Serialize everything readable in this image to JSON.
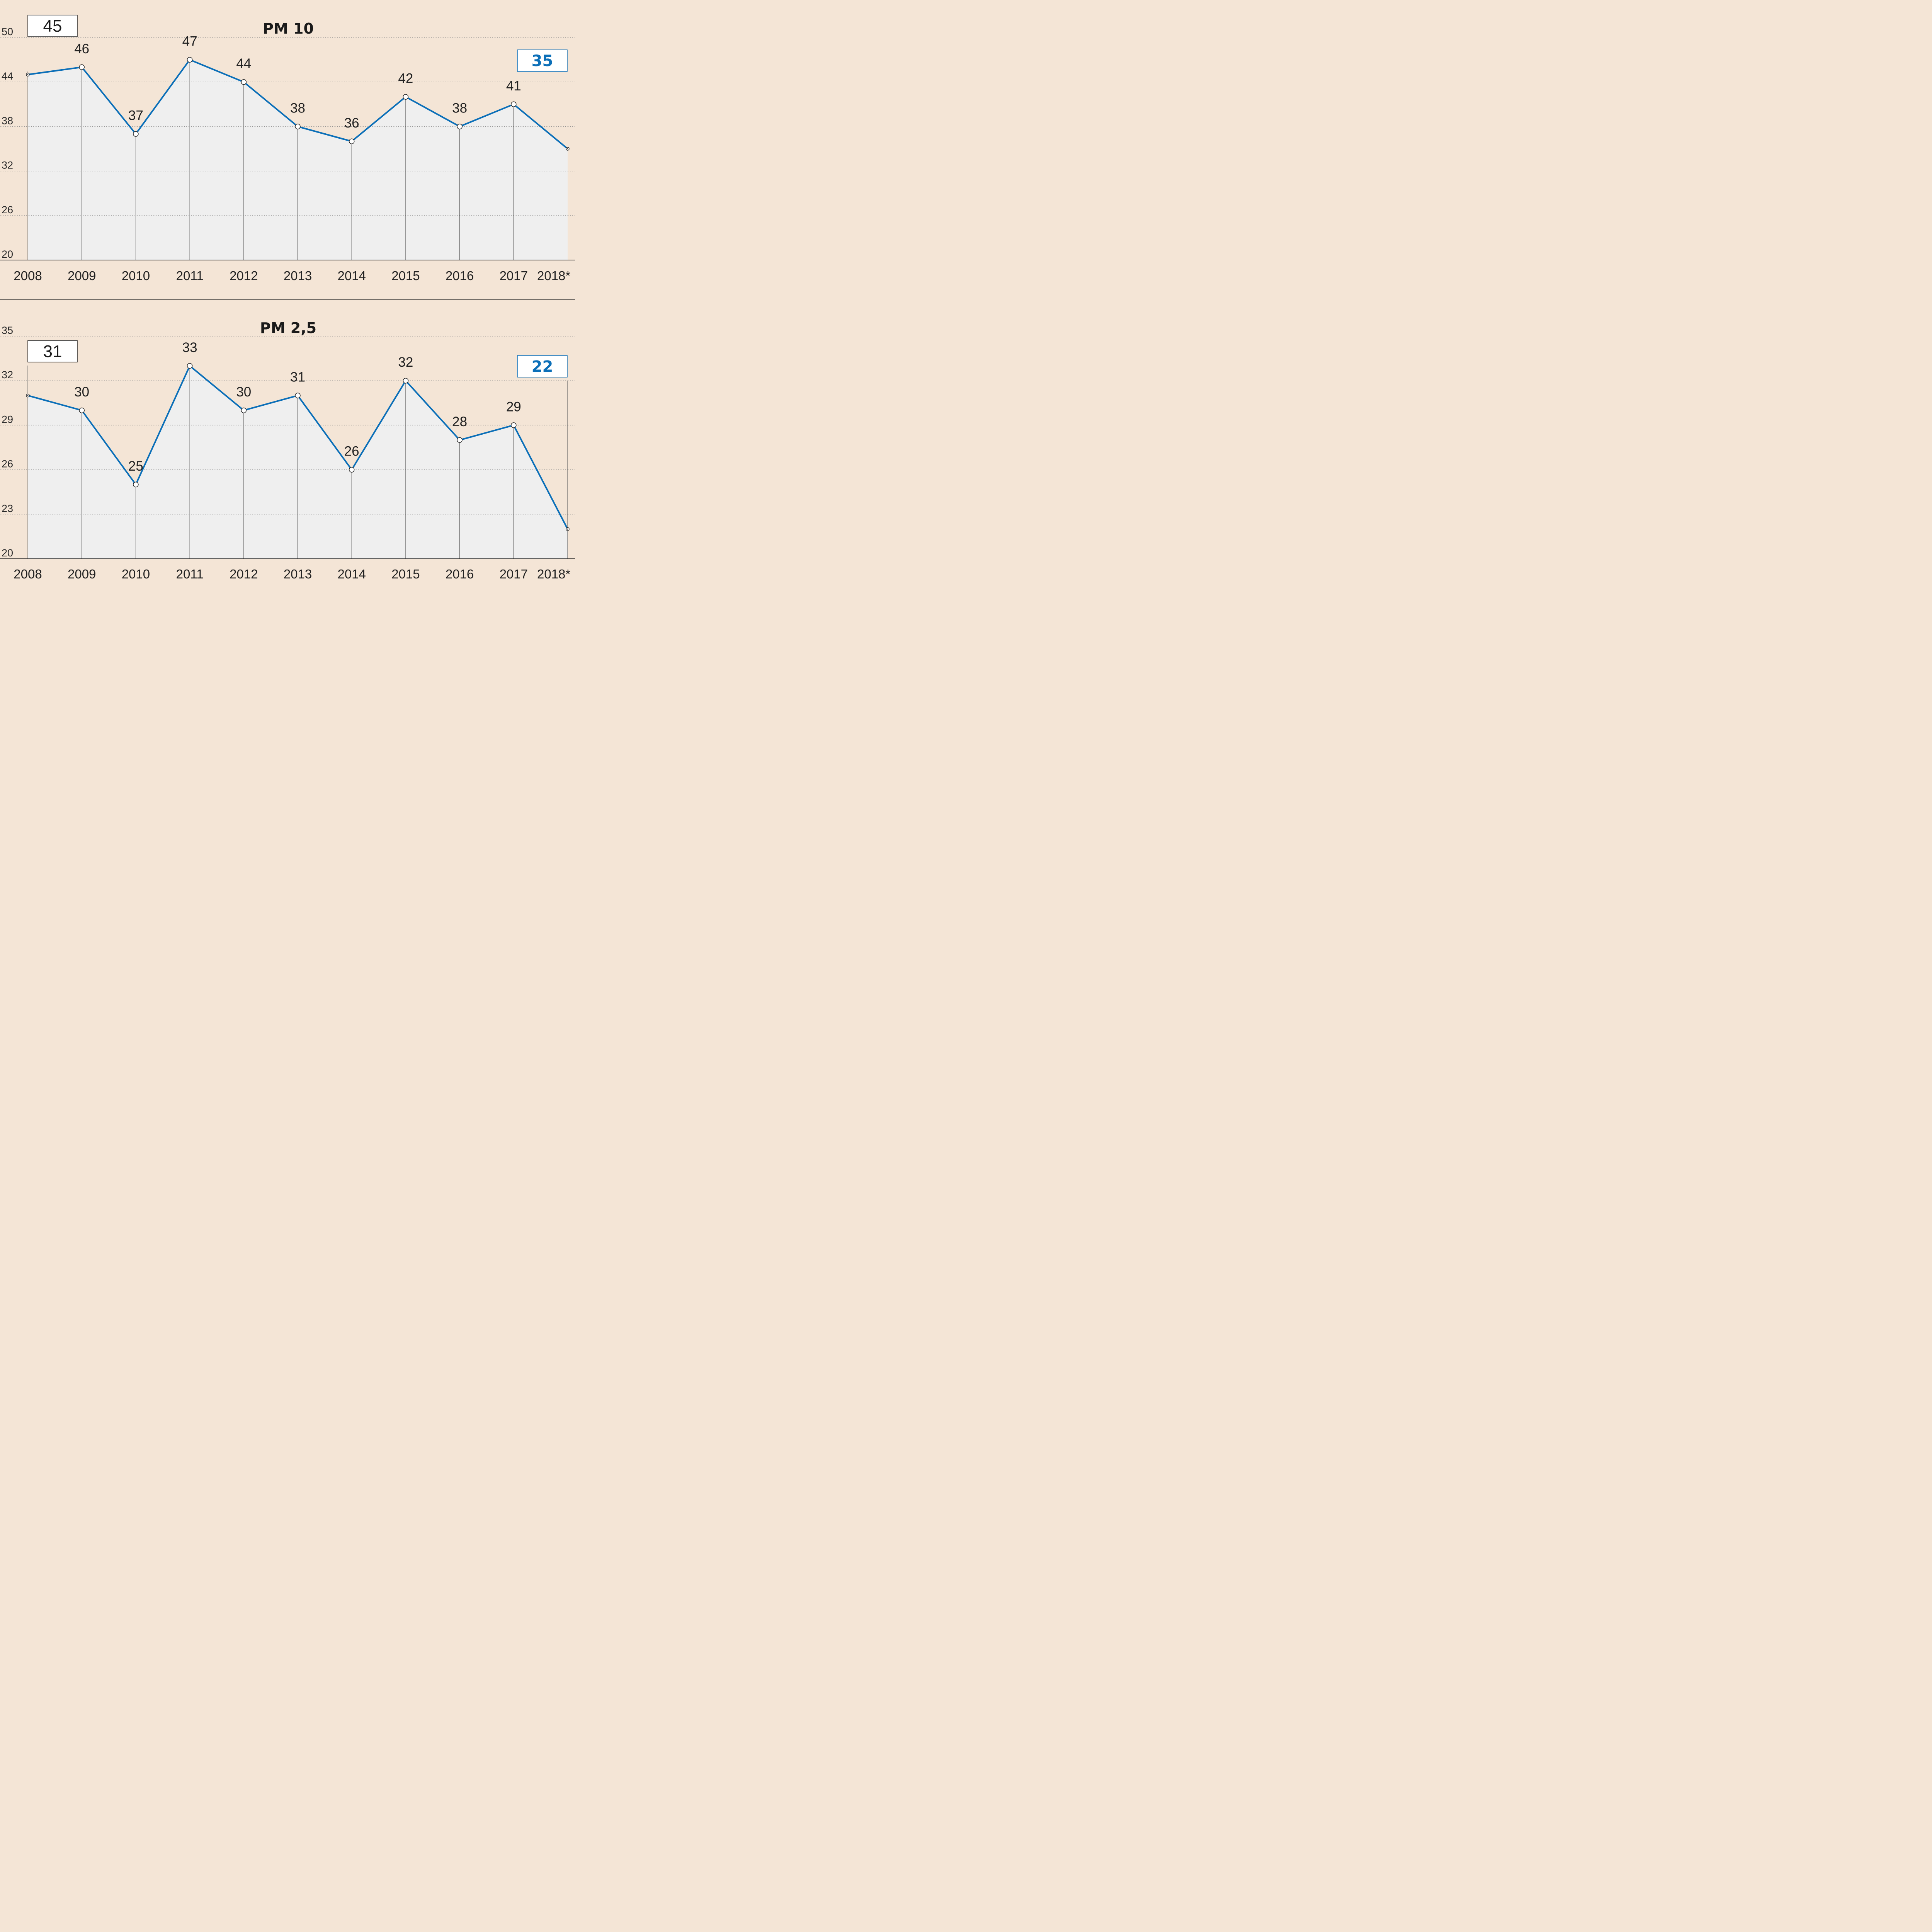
{
  "colors": {
    "background": "#f4e5d6",
    "plot_fill": "#efefef",
    "line": "#0b6fb8",
    "grid": "#8a8a8a",
    "text": "#222222"
  },
  "chart_data": [
    {
      "type": "line",
      "title": "PM 10",
      "x": [
        "2008",
        "2009",
        "2010",
        "2011",
        "2012",
        "2013",
        "2014",
        "2015",
        "2016",
        "2017",
        "2018*"
      ],
      "values": [
        45,
        46,
        37,
        47,
        44,
        38,
        36,
        42,
        38,
        41,
        35
      ],
      "point_labels": [
        "",
        "46",
        "37",
        "47",
        "44",
        "38",
        "36",
        "42",
        "38",
        "41",
        ""
      ],
      "yticks": [
        "20",
        "26",
        "32",
        "38",
        "44",
        "50"
      ],
      "ylim": [
        20,
        50
      ],
      "grid": true,
      "start_box": "45",
      "end_box": "35"
    },
    {
      "type": "line",
      "title": "PM 2,5",
      "x": [
        "2008",
        "2009",
        "2010",
        "2011",
        "2012",
        "2013",
        "2014",
        "2015",
        "2016",
        "2017",
        "2018*"
      ],
      "values": [
        31,
        30,
        25,
        33,
        30,
        31,
        26,
        32,
        28,
        29,
        22
      ],
      "point_labels": [
        "",
        "30",
        "25",
        "33",
        "30",
        "31",
        "26",
        "32",
        "28",
        "29",
        ""
      ],
      "yticks": [
        "20",
        "23",
        "26",
        "29",
        "32",
        "35"
      ],
      "ylim": [
        20,
        35
      ],
      "grid": true,
      "start_box": "31",
      "end_box": "22"
    }
  ]
}
